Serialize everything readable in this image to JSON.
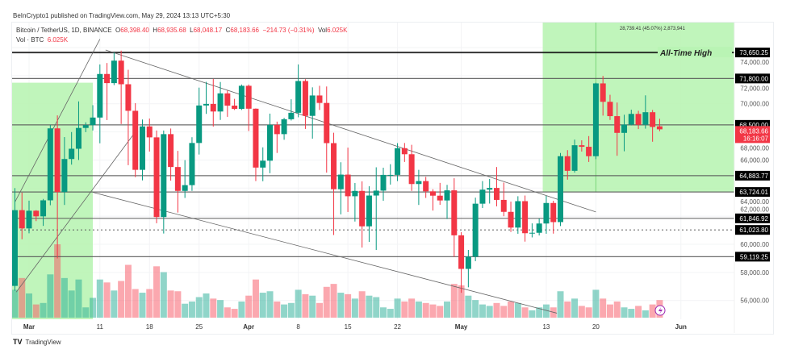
{
  "header": {
    "published": "BeInCrypto1 published on TradingView.com, May 29, 2024 13:13 UTC+5:30"
  },
  "legend": {
    "symbol": "Bitcoin / TetherUS, 1D, BINANCE",
    "o_label": "O",
    "o": "68,398.40",
    "h_label": "H",
    "h": "68,935.68",
    "l_label": "L",
    "l": "68,048.17",
    "c_label": "C",
    "c": "68,183.66",
    "change": "−214.73 (−0.31%)",
    "vol_label": "Vol",
    "vol": "6.025K",
    "vol_line_label": "Vol · BTC",
    "vol_line_value": "6.025K"
  },
  "footer": {
    "brand": "TradingView"
  },
  "colors": {
    "up": "#089981",
    "down": "#f23645",
    "box": "#b9f4b4"
  },
  "chart_data": {
    "type": "candlestick",
    "title": "Bitcoin / TetherUS, 1D, BINANCE",
    "ylim": [
      55000,
      75200
    ],
    "y_ticks": [
      "74,000.00",
      "72,000.00",
      "70,000.00",
      "68,000.00",
      "66,000.00",
      "64,000.00",
      "62,000.00",
      "60,000.00",
      "58,000.00",
      "56,000.00"
    ],
    "y_tick_values": [
      74000,
      72000,
      70000,
      68000,
      66000,
      64000,
      62000,
      60000,
      58000,
      56000
    ],
    "x_ticks": [
      {
        "label": "Mar",
        "day": 0
      },
      {
        "label": "11",
        "day": 10
      },
      {
        "label": "18",
        "day": 17
      },
      {
        "label": "25",
        "day": 24
      },
      {
        "label": "Apr",
        "day": 31
      },
      {
        "label": "8",
        "day": 38
      },
      {
        "label": "15",
        "day": 45
      },
      {
        "label": "22",
        "day": 52
      },
      {
        "label": "May",
        "day": 61
      },
      {
        "label": "13",
        "day": 73
      },
      {
        "label": "20",
        "day": 80
      },
      {
        "label": "Jun",
        "day": 92
      }
    ],
    "start_date": "2024-02-28",
    "ohlc": [
      [
        57040,
        64000,
        56700,
        62430
      ],
      [
        62430,
        63680,
        60360,
        61130
      ],
      [
        61130,
        63110,
        60780,
        62390
      ],
      [
        62390,
        62430,
        61650,
        61990
      ],
      [
        61990,
        63230,
        61310,
        63130
      ],
      [
        63130,
        68500,
        62780,
        68250
      ],
      [
        68250,
        69170,
        59000,
        63720
      ],
      [
        63720,
        67630,
        62800,
        66070
      ],
      [
        66070,
        67990,
        65670,
        66800
      ],
      [
        66800,
        70170,
        66000,
        68280
      ],
      [
        68280,
        68680,
        67980,
        68480
      ],
      [
        68480,
        69900,
        68100,
        69020
      ],
      [
        69020,
        72800,
        67190,
        72120
      ],
      [
        72120,
        72900,
        68840,
        71470
      ],
      [
        71470,
        73650,
        71330,
        73070
      ],
      [
        73070,
        73780,
        68560,
        71390
      ],
      [
        71390,
        72420,
        65630,
        69500
      ],
      [
        69500,
        70040,
        64780,
        65300
      ],
      [
        65300,
        68880,
        64550,
        68390
      ],
      [
        68390,
        68950,
        66600,
        67610
      ],
      [
        67610,
        68100,
        61500,
        61940
      ],
      [
        61940,
        68100,
        60770,
        67840
      ],
      [
        67840,
        68240,
        64530,
        65500
      ],
      [
        65500,
        66650,
        62260,
        63800
      ],
      [
        63800,
        65990,
        63300,
        64210
      ],
      [
        64210,
        67620,
        63800,
        67210
      ],
      [
        67210,
        71150,
        66390,
        69880
      ],
      [
        69880,
        71560,
        69280,
        69990
      ],
      [
        69990,
        71770,
        68380,
        69450
      ],
      [
        69450,
        71550,
        68850,
        70740
      ],
      [
        70740,
        70950,
        69070,
        69870
      ],
      [
        69870,
        70350,
        69560,
        69640
      ],
      [
        69640,
        71370,
        69560,
        71280
      ],
      [
        71280,
        71370,
        68060,
        69650
      ],
      [
        69650,
        69670,
        64500,
        65460
      ],
      [
        65460,
        66900,
        64490,
        65950
      ],
      [
        65950,
        69300,
        65060,
        68500
      ],
      [
        68500,
        68730,
        66500,
        67840
      ],
      [
        67840,
        69000,
        67440,
        68900
      ],
      [
        68900,
        70320,
        68810,
        69360
      ],
      [
        69360,
        72800,
        69040,
        71620
      ],
      [
        71620,
        71750,
        68210,
        69140
      ],
      [
        69140,
        71170,
        67520,
        70590
      ],
      [
        70590,
        71280,
        69560,
        70060
      ],
      [
        70060,
        71230,
        65100,
        67200
      ],
      [
        67200,
        67940,
        60660,
        63920
      ],
      [
        63920,
        65840,
        62130,
        64960
      ],
      [
        64960,
        66880,
        62300,
        63420
      ],
      [
        63420,
        64360,
        61620,
        63800
      ],
      [
        63800,
        64480,
        59770,
        61280
      ],
      [
        61280,
        64130,
        60170,
        63470
      ],
      [
        63470,
        65480,
        59600,
        63820
      ],
      [
        63820,
        65450,
        63100,
        64940
      ],
      [
        64940,
        65700,
        64250,
        64940
      ],
      [
        64940,
        67200,
        64500,
        66840
      ],
      [
        66840,
        67210,
        65860,
        66410
      ],
      [
        66410,
        67080,
        63800,
        64290
      ],
      [
        64290,
        65300,
        62800,
        64500
      ],
      [
        64500,
        64800,
        63300,
        63770
      ],
      [
        63770,
        63920,
        62400,
        63460
      ],
      [
        63460,
        64370,
        62810,
        63120
      ],
      [
        63120,
        64230,
        61800,
        63840
      ],
      [
        63840,
        64700,
        59100,
        60640
      ],
      [
        60640,
        60860,
        56550,
        58250
      ],
      [
        58250,
        59600,
        56940,
        59120
      ],
      [
        59120,
        63320,
        58800,
        62890
      ],
      [
        62890,
        64500,
        62580,
        63890
      ],
      [
        63890,
        64650,
        62900,
        64010
      ],
      [
        64010,
        65500,
        62700,
        63160
      ],
      [
        63160,
        64390,
        62000,
        62310
      ],
      [
        62310,
        63040,
        60880,
        61190
      ],
      [
        61190,
        63420,
        60750,
        63070
      ],
      [
        63070,
        63470,
        60190,
        60790
      ],
      [
        60790,
        61490,
        60490,
        60820
      ],
      [
        60820,
        61840,
        60630,
        61480
      ],
      [
        61480,
        63450,
        60750,
        62940
      ],
      [
        62940,
        63100,
        60760,
        61580
      ],
      [
        61580,
        66500,
        61300,
        66270
      ],
      [
        66270,
        66700,
        64600,
        65230
      ],
      [
        65230,
        67450,
        65100,
        67050
      ],
      [
        67050,
        67400,
        66600,
        66940
      ],
      [
        66940,
        67700,
        65860,
        66270
      ],
      [
        66270,
        71500,
        66060,
        71450
      ],
      [
        71450,
        71980,
        69160,
        70140
      ],
      [
        70140,
        70640,
        68850,
        69120
      ],
      [
        69120,
        70090,
        66300,
        67930
      ],
      [
        67930,
        69220,
        66620,
        68520
      ],
      [
        68520,
        69580,
        68460,
        69280
      ],
      [
        69280,
        69500,
        68200,
        68510
      ],
      [
        68510,
        70600,
        68230,
        69400
      ],
      [
        69400,
        69560,
        67300,
        68350
      ],
      [
        68398,
        68935,
        68048,
        68183
      ]
    ],
    "volume": [
      38,
      54,
      33,
      18,
      20,
      59,
      100,
      54,
      37,
      52,
      14,
      27,
      52,
      48,
      37,
      50,
      72,
      39,
      34,
      39,
      70,
      62,
      37,
      36,
      19,
      22,
      28,
      33,
      26,
      24,
      14,
      12,
      22,
      30,
      52,
      34,
      36,
      22,
      18,
      20,
      38,
      32,
      30,
      20,
      42,
      46,
      34,
      32,
      26,
      36,
      30,
      28,
      14,
      12,
      26,
      22,
      26,
      22,
      20,
      18,
      16,
      22,
      46,
      44,
      30,
      24,
      18,
      16,
      20,
      16,
      22,
      20,
      14,
      10,
      14,
      18,
      14,
      36,
      22,
      26,
      16,
      14,
      38,
      26,
      18,
      22,
      14,
      12,
      16,
      10,
      18,
      24
    ],
    "levels": [
      {
        "price": 73650.25,
        "label": "73,650.25",
        "style": "solid-thick",
        "note": "All-Time High"
      },
      {
        "price": 71800,
        "label": "71,800.00",
        "style": "solid"
      },
      {
        "price": 68500,
        "label": "68,500.00",
        "style": "solid"
      },
      {
        "price": 64883.77,
        "label": "64,883.77",
        "style": "solid"
      },
      {
        "price": 63724.01,
        "label": "63,724.01",
        "style": "solid"
      },
      {
        "price": 61846.92,
        "label": "61,846.92",
        "style": "solid"
      },
      {
        "price": 61023.8,
        "label": "61,023.80",
        "style": "dotted"
      },
      {
        "price": 59119.25,
        "label": "59,119.25",
        "style": "solid"
      }
    ],
    "last_price": {
      "label": "68,183.66",
      "countdown": "16:16:07",
      "price": 68183.66
    },
    "trendlines": [
      {
        "from": [
          10.8,
          73830
        ],
        "to": [
          80,
          62300
        ]
      },
      {
        "from": [
          9,
          63700
        ],
        "to": [
          74.5,
          55100
        ]
      },
      {
        "from": [
          -2,
          63000
        ],
        "to": [
          10,
          74600
        ]
      },
      {
        "from": [
          -1.8,
          56600
        ],
        "to": [
          15,
          68000
        ]
      }
    ],
    "ranges": [
      {
        "from_day": -2.5,
        "to_day": 9,
        "top": 71500,
        "bottom": null
      },
      {
        "from_day": 72.5,
        "to_day": 100,
        "top": null,
        "bottom": 63724.01,
        "label": "28,739.41 (45.07%) 2,873,941",
        "marker_day": 80
      }
    ]
  }
}
